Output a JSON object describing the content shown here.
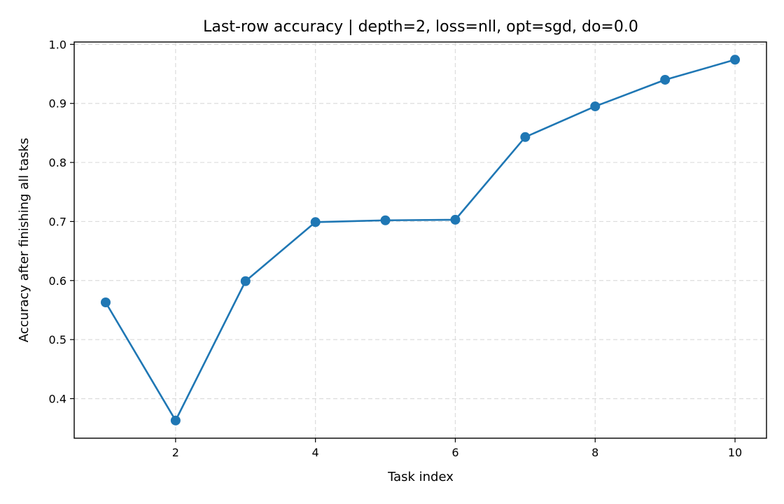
{
  "chart_data": {
    "type": "line",
    "title": "Last-row accuracy | depth=2, loss=nll, opt=sgd, do=0.0",
    "xlabel": "Task index",
    "ylabel": "Accuracy after finishing all tasks",
    "x": [
      1,
      2,
      3,
      4,
      5,
      6,
      7,
      8,
      9,
      10
    ],
    "series": [
      {
        "values": [
          0.563,
          0.363,
          0.599,
          0.699,
          0.702,
          0.703,
          0.843,
          0.895,
          0.94,
          0.974
        ],
        "color": "#1f77b4",
        "marker": "circle"
      }
    ],
    "xlim": [
      0.55,
      10.45
    ],
    "ylim": [
      0.333,
      1.004
    ],
    "xticks": [
      2,
      4,
      6,
      8,
      10
    ],
    "xtick_labels": [
      "2",
      "4",
      "6",
      "8",
      "10"
    ],
    "yticks": [
      0.4,
      0.5,
      0.6,
      0.7,
      0.8,
      0.9,
      1.0
    ],
    "ytick_labels": [
      "0.4",
      "0.5",
      "0.6",
      "0.7",
      "0.8",
      "0.9",
      "1.0"
    ],
    "grid": true,
    "legend": "none"
  }
}
